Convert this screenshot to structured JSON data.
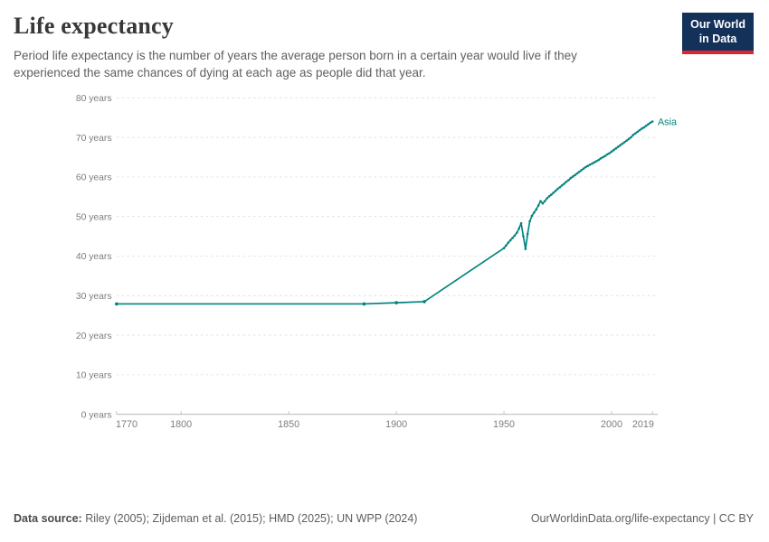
{
  "header": {
    "title": "Life expectancy",
    "subtitle": "Period life expectancy is the number of years the average person born in a certain year would live if they experienced the same chances of dying at each age as people did that year."
  },
  "logo": {
    "line1": "Our World",
    "line2": "in Data",
    "bg_color": "#14315a",
    "bar_color": "#e0242e"
  },
  "chart_data": {
    "type": "line",
    "title": "Life expectancy",
    "xlabel": "",
    "ylabel": "",
    "unit": "years",
    "x_range": [
      1770,
      2019
    ],
    "y_range": [
      0,
      80
    ],
    "grid": true,
    "legend_position": "end-of-line-label",
    "y_ticks": [
      {
        "value": 0,
        "label": "0 years"
      },
      {
        "value": 10,
        "label": "10 years"
      },
      {
        "value": 20,
        "label": "20 years"
      },
      {
        "value": 30,
        "label": "30 years"
      },
      {
        "value": 40,
        "label": "40 years"
      },
      {
        "value": 50,
        "label": "50 years"
      },
      {
        "value": 60,
        "label": "60 years"
      },
      {
        "value": 70,
        "label": "70 years"
      },
      {
        "value": 80,
        "label": "80 years"
      }
    ],
    "x_ticks": [
      {
        "value": 1770,
        "label": "1770",
        "align": "start"
      },
      {
        "value": 1800,
        "label": "1800",
        "align": "middle"
      },
      {
        "value": 1850,
        "label": "1850",
        "align": "middle"
      },
      {
        "value": 1900,
        "label": "1900",
        "align": "middle"
      },
      {
        "value": 1950,
        "label": "1950",
        "align": "middle"
      },
      {
        "value": 2000,
        "label": "2000",
        "align": "middle"
      },
      {
        "value": 2019,
        "label": "2019",
        "align": "end"
      }
    ],
    "series": [
      {
        "name": "Asia",
        "color": "#00847e",
        "marker_emphasis_years": [
          1770,
          1885,
          1900,
          1913
        ],
        "points": [
          [
            1770,
            27.9
          ],
          [
            1885,
            27.9
          ],
          [
            1900,
            28.2
          ],
          [
            1913,
            28.5
          ],
          [
            1950,
            42.0
          ],
          [
            1951,
            42.7
          ],
          [
            1952,
            43.4
          ],
          [
            1953,
            44.0
          ],
          [
            1954,
            44.6
          ],
          [
            1955,
            45.2
          ],
          [
            1956,
            45.9
          ],
          [
            1957,
            47.0
          ],
          [
            1958,
            48.3
          ],
          [
            1959,
            45.0
          ],
          [
            1960,
            41.8
          ],
          [
            1961,
            45.6
          ],
          [
            1962,
            48.8
          ],
          [
            1963,
            50.2
          ],
          [
            1964,
            51.0
          ],
          [
            1965,
            51.8
          ],
          [
            1966,
            52.8
          ],
          [
            1967,
            53.9
          ],
          [
            1968,
            53.3
          ],
          [
            1969,
            53.9
          ],
          [
            1970,
            54.6
          ],
          [
            1971,
            55.1
          ],
          [
            1972,
            55.5
          ],
          [
            1973,
            56.0
          ],
          [
            1974,
            56.5
          ],
          [
            1975,
            57.0
          ],
          [
            1976,
            57.4
          ],
          [
            1977,
            57.9
          ],
          [
            1978,
            58.3
          ],
          [
            1979,
            58.8
          ],
          [
            1980,
            59.2
          ],
          [
            1981,
            59.7
          ],
          [
            1982,
            60.1
          ],
          [
            1983,
            60.5
          ],
          [
            1984,
            60.9
          ],
          [
            1985,
            61.3
          ],
          [
            1986,
            61.7
          ],
          [
            1987,
            62.1
          ],
          [
            1988,
            62.5
          ],
          [
            1989,
            62.8
          ],
          [
            1990,
            63.1
          ],
          [
            1991,
            63.4
          ],
          [
            1992,
            63.7
          ],
          [
            1993,
            64.0
          ],
          [
            1994,
            64.3
          ],
          [
            1995,
            64.7
          ],
          [
            1996,
            65.0
          ],
          [
            1997,
            65.3
          ],
          [
            1998,
            65.7
          ],
          [
            1999,
            66.0
          ],
          [
            2000,
            66.4
          ],
          [
            2001,
            66.8
          ],
          [
            2002,
            67.2
          ],
          [
            2003,
            67.6
          ],
          [
            2004,
            68.0
          ],
          [
            2005,
            68.4
          ],
          [
            2006,
            68.8
          ],
          [
            2007,
            69.2
          ],
          [
            2008,
            69.6
          ],
          [
            2009,
            70.0
          ],
          [
            2010,
            70.6
          ],
          [
            2011,
            71.0
          ],
          [
            2012,
            71.4
          ],
          [
            2013,
            71.8
          ],
          [
            2014,
            72.2
          ],
          [
            2015,
            72.5
          ],
          [
            2016,
            72.9
          ],
          [
            2017,
            73.3
          ],
          [
            2018,
            73.7
          ],
          [
            2019,
            74.0
          ]
        ]
      }
    ]
  },
  "footer": {
    "source_label": "Data source:",
    "source_text": " Riley (2005); Zijdeman et al. (2015); HMD (2025); UN WPP (2024)",
    "link": "OurWorldinData.org/life-expectancy | CC BY"
  },
  "colors": {
    "line": "#00847e",
    "grid": "#dcdcdc",
    "axis": "#adadad",
    "tick": "#bcbcbc",
    "tick_label": "#7d7d7d",
    "title": "#383838",
    "subtitle": "#5f5f5f"
  }
}
